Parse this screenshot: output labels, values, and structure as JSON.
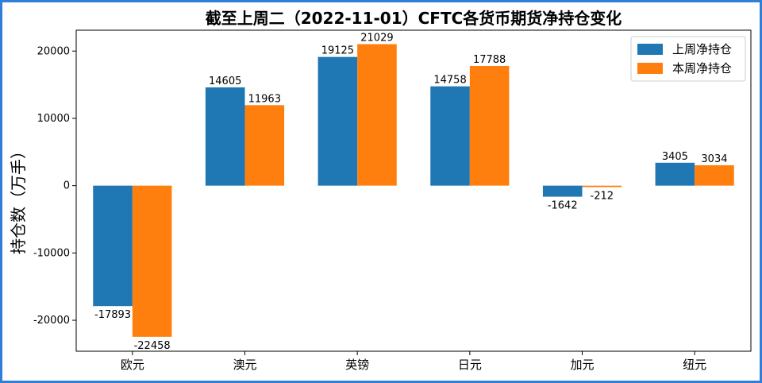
{
  "chart_data": {
    "type": "bar",
    "title": "截至上周二（2022-11-01）CFTC各货币期货净持仓变化",
    "xlabel": "",
    "ylabel": "持仓数（万手）",
    "categories": [
      "欧元",
      "澳元",
      "英镑",
      "日元",
      "加元",
      "纽元"
    ],
    "series": [
      {
        "name": "上周净持仓",
        "color": "#1f77b4",
        "values": [
          -17893,
          14605,
          19125,
          14758,
          -1642,
          3405
        ]
      },
      {
        "name": "本周净持仓",
        "color": "#ff7f0e",
        "values": [
          -22458,
          11963,
          21029,
          17788,
          -212,
          3034
        ]
      }
    ],
    "ylim": [
      -24600,
      23100
    ],
    "yticks": [
      -20000,
      -10000,
      0,
      10000,
      20000
    ],
    "grid": false,
    "legend_position": "top-right"
  }
}
